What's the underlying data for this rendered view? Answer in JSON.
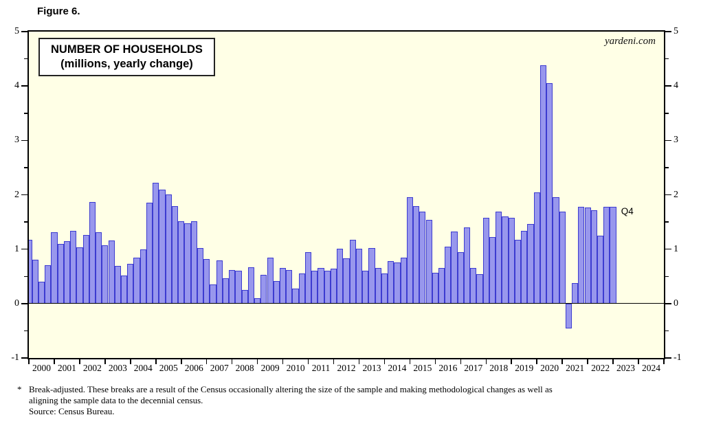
{
  "figure_label": "Figure 6.",
  "title_line1": "NUMBER OF HOUSEHOLDS",
  "title_line2": "(millions, yearly change)",
  "watermark": "yardeni.com",
  "last_point_label": "Q4",
  "footnote": {
    "marker": "*",
    "lines": [
      "Break-adjusted. These breaks are a result of the Census occasionally altering the size of the sample and making methodological changes as well as",
      "aligning the sample data to the decennial census.",
      "Source: Census Bureau."
    ]
  },
  "colors": {
    "plot_bg": "#FFFFE6",
    "bar_fill": "#9897ED",
    "bar_border": "#3C3BD0",
    "axis": "#000000"
  },
  "chart_data": {
    "type": "bar",
    "title": "NUMBER OF HOUSEHOLDS (millions, yearly change)",
    "ylabel": "millions, yearly change",
    "ylim": [
      -1,
      5
    ],
    "y_major_ticks": [
      -1,
      0,
      1,
      2,
      3,
      4,
      5
    ],
    "y_minor_step": 0.5,
    "grid": false,
    "legend": "none",
    "x_years": [
      "2000",
      "2001",
      "2002",
      "2003",
      "2004",
      "2005",
      "2006",
      "2007",
      "2008",
      "2009",
      "2010",
      "2011",
      "2012",
      "2013",
      "2014",
      "2015",
      "2016",
      "2017",
      "2018",
      "2019",
      "2020",
      "2021",
      "2022",
      "2023",
      "2024"
    ],
    "points": [
      {
        "q": "1999Q4",
        "v": 1.17,
        "clipped": true
      },
      {
        "q": "2000Q1",
        "v": 0.81
      },
      {
        "q": "2000Q2",
        "v": 0.4
      },
      {
        "q": "2000Q3",
        "v": 0.7
      },
      {
        "q": "2000Q4",
        "v": 1.31
      },
      {
        "q": "2001Q1",
        "v": 1.1
      },
      {
        "q": "2001Q2",
        "v": 1.15
      },
      {
        "q": "2001Q3",
        "v": 1.34
      },
      {
        "q": "2001Q4",
        "v": 1.04
      },
      {
        "q": "2002Q1",
        "v": 1.26
      },
      {
        "q": "2002Q2",
        "v": 1.87
      },
      {
        "q": "2002Q3",
        "v": 1.31
      },
      {
        "q": "2002Q4",
        "v": 1.07
      },
      {
        "q": "2003Q1",
        "v": 1.16
      },
      {
        "q": "2003Q2",
        "v": 0.69
      },
      {
        "q": "2003Q3",
        "v": 0.52
      },
      {
        "q": "2003Q4",
        "v": 0.73
      },
      {
        "q": "2004Q1",
        "v": 0.84
      },
      {
        "q": "2004Q2",
        "v": 0.99
      },
      {
        "q": "2004Q3",
        "v": 1.86
      },
      {
        "q": "2004Q4",
        "v": 2.22
      },
      {
        "q": "2005Q1",
        "v": 2.1
      },
      {
        "q": "2005Q2",
        "v": 2.01
      },
      {
        "q": "2005Q3",
        "v": 1.79
      },
      {
        "q": "2005Q4",
        "v": 1.52
      },
      {
        "q": "2006Q1",
        "v": 1.48
      },
      {
        "q": "2006Q2",
        "v": 1.51
      },
      {
        "q": "2006Q3",
        "v": 1.02
      },
      {
        "q": "2006Q4",
        "v": 0.82
      },
      {
        "q": "2007Q1",
        "v": 0.35
      },
      {
        "q": "2007Q2",
        "v": 0.79
      },
      {
        "q": "2007Q3",
        "v": 0.46
      },
      {
        "q": "2007Q4",
        "v": 0.62
      },
      {
        "q": "2008Q1",
        "v": 0.6
      },
      {
        "q": "2008Q2",
        "v": 0.25
      },
      {
        "q": "2008Q3",
        "v": 0.67
      },
      {
        "q": "2008Q4",
        "v": 0.1
      },
      {
        "q": "2009Q1",
        "v": 0.53
      },
      {
        "q": "2009Q2",
        "v": 0.84
      },
      {
        "q": "2009Q3",
        "v": 0.42
      },
      {
        "q": "2009Q4",
        "v": 0.66
      },
      {
        "q": "2010Q1",
        "v": 0.62
      },
      {
        "q": "2010Q2",
        "v": 0.27
      },
      {
        "q": "2010Q3",
        "v": 0.55
      },
      {
        "q": "2010Q4",
        "v": 0.95
      },
      {
        "q": "2011Q1",
        "v": 0.6
      },
      {
        "q": "2011Q2",
        "v": 0.66
      },
      {
        "q": "2011Q3",
        "v": 0.6
      },
      {
        "q": "2011Q4",
        "v": 0.64
      },
      {
        "q": "2012Q1",
        "v": 1.01
      },
      {
        "q": "2012Q2",
        "v": 0.83
      },
      {
        "q": "2012Q3",
        "v": 1.17
      },
      {
        "q": "2012Q4",
        "v": 1.01
      },
      {
        "q": "2013Q1",
        "v": 0.61
      },
      {
        "q": "2013Q2",
        "v": 1.02
      },
      {
        "q": "2013Q3",
        "v": 0.66
      },
      {
        "q": "2013Q4",
        "v": 0.56
      },
      {
        "q": "2014Q1",
        "v": 0.78
      },
      {
        "q": "2014Q2",
        "v": 0.75
      },
      {
        "q": "2014Q3",
        "v": 0.84
      },
      {
        "q": "2014Q4",
        "v": 1.96
      },
      {
        "q": "2015Q1",
        "v": 1.79
      },
      {
        "q": "2015Q2",
        "v": 1.69
      },
      {
        "q": "2015Q3",
        "v": 1.54
      },
      {
        "q": "2015Q4",
        "v": 0.57
      },
      {
        "q": "2016Q1",
        "v": 0.66
      },
      {
        "q": "2016Q2",
        "v": 1.05
      },
      {
        "q": "2016Q3",
        "v": 1.32
      },
      {
        "q": "2016Q4",
        "v": 0.95
      },
      {
        "q": "2017Q1",
        "v": 1.4
      },
      {
        "q": "2017Q2",
        "v": 0.66
      },
      {
        "q": "2017Q3",
        "v": 0.54
      },
      {
        "q": "2017Q4",
        "v": 1.58
      },
      {
        "q": "2018Q1",
        "v": 1.22
      },
      {
        "q": "2018Q2",
        "v": 1.69
      },
      {
        "q": "2018Q3",
        "v": 1.6
      },
      {
        "q": "2018Q4",
        "v": 1.58
      },
      {
        "q": "2019Q1",
        "v": 1.17
      },
      {
        "q": "2019Q2",
        "v": 1.34
      },
      {
        "q": "2019Q3",
        "v": 1.46
      },
      {
        "q": "2019Q4",
        "v": 2.04
      },
      {
        "q": "2020Q1",
        "v": 4.38
      },
      {
        "q": "2020Q2",
        "v": 4.05
      },
      {
        "q": "2020Q3",
        "v": 1.95
      },
      {
        "q": "2020Q4",
        "v": 1.69
      },
      {
        "q": "2021Q1",
        "v": -0.46
      },
      {
        "q": "2021Q2",
        "v": 0.38
      },
      {
        "q": "2021Q3",
        "v": 1.78
      },
      {
        "q": "2021Q4",
        "v": 1.77
      },
      {
        "q": "2022Q1",
        "v": 1.72
      },
      {
        "q": "2022Q2",
        "v": 1.25
      },
      {
        "q": "2022Q3",
        "v": 1.78
      },
      {
        "q": "2022Q4",
        "v": 1.78
      }
    ]
  }
}
